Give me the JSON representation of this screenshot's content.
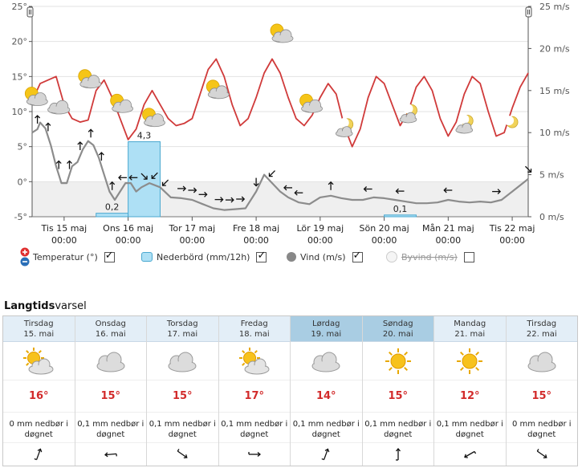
{
  "chart_data": {
    "type": "line",
    "y_left": {
      "ticks": [
        "25°",
        "20°",
        "15°",
        "10°",
        "5°",
        "0°",
        "-5°"
      ],
      "range": [
        -5,
        25
      ]
    },
    "y_right": {
      "ticks": [
        "25 m/s",
        "20 m/s",
        "15 m/s",
        "10 m/s",
        "5 m/s",
        "0 m/s"
      ],
      "range": [
        0,
        25
      ]
    },
    "x_labels": [
      {
        "day": "Tis 15 maj",
        "time": "00:00"
      },
      {
        "day": "Ons 16 maj",
        "time": "00:00"
      },
      {
        "day": "Tor 17 maj",
        "time": "00:00"
      },
      {
        "day": "Fre 18 maj",
        "time": "00:00"
      },
      {
        "day": "Lör 19 maj",
        "time": "00:00"
      },
      {
        "day": "Sön 20 maj",
        "time": "00:00"
      },
      {
        "day": "Mån 21 maj",
        "time": "00:00"
      },
      {
        "day": "Tis 22 maj",
        "time": "00:00"
      }
    ],
    "series": [
      {
        "name": "Temperatur (°)",
        "color": "#d03a3a",
        "points": [
          [
            0,
            11.5
          ],
          [
            3,
            14
          ],
          [
            6,
            14.5
          ],
          [
            9,
            15
          ],
          [
            12,
            11
          ],
          [
            15,
            9
          ],
          [
            18,
            8.5
          ],
          [
            21,
            8.8
          ],
          [
            24,
            13
          ],
          [
            27,
            14.5
          ],
          [
            30,
            12
          ],
          [
            33,
            9
          ],
          [
            36,
            6
          ],
          [
            39,
            7.5
          ],
          [
            42,
            11
          ],
          [
            45,
            13
          ],
          [
            48,
            11
          ],
          [
            51,
            9
          ],
          [
            54,
            8
          ],
          [
            57,
            8.3
          ],
          [
            60,
            9
          ],
          [
            63,
            12.5
          ],
          [
            66,
            16
          ],
          [
            69,
            17.5
          ],
          [
            72,
            15
          ],
          [
            75,
            11
          ],
          [
            78,
            8
          ],
          [
            81,
            9
          ],
          [
            84,
            12
          ],
          [
            87,
            15.5
          ],
          [
            90,
            17.5
          ],
          [
            93,
            15.5
          ],
          [
            96,
            12
          ],
          [
            99,
            9
          ],
          [
            102,
            8
          ],
          [
            105,
            9.5
          ],
          [
            108,
            12
          ],
          [
            111,
            14
          ],
          [
            114,
            12.5
          ],
          [
            117,
            8
          ],
          [
            120,
            5
          ],
          [
            123,
            7.5
          ],
          [
            126,
            12
          ],
          [
            129,
            15
          ],
          [
            132,
            14
          ],
          [
            135,
            11
          ],
          [
            138,
            8
          ],
          [
            141,
            10
          ],
          [
            144,
            13.5
          ],
          [
            147,
            15
          ],
          [
            150,
            13
          ],
          [
            153,
            9
          ],
          [
            156,
            6.5
          ],
          [
            159,
            8.5
          ],
          [
            162,
            12.5
          ],
          [
            165,
            15
          ],
          [
            168,
            14
          ],
          [
            171,
            10
          ],
          [
            174,
            6.5
          ],
          [
            177,
            7
          ],
          [
            180,
            10.5
          ],
          [
            183,
            13.5
          ],
          [
            186,
            15.5
          ]
        ]
      },
      {
        "name": "Vind (m/s)",
        "color": "#8c8c8c",
        "points": [
          [
            0,
            10
          ],
          [
            2,
            10.4
          ],
          [
            3,
            11.2
          ],
          [
            5,
            10.5
          ],
          [
            7,
            8.5
          ],
          [
            9,
            6
          ],
          [
            11,
            4
          ],
          [
            13,
            4
          ],
          [
            15,
            6
          ],
          [
            17,
            6.5
          ],
          [
            19,
            8
          ],
          [
            21,
            9
          ],
          [
            23,
            8.5
          ],
          [
            25,
            7
          ],
          [
            27,
            5
          ],
          [
            29,
            3
          ],
          [
            31,
            2
          ],
          [
            33,
            3
          ],
          [
            35,
            4
          ],
          [
            37,
            4
          ],
          [
            39,
            3
          ],
          [
            41,
            3.5
          ],
          [
            44,
            4
          ],
          [
            48,
            3.5
          ],
          [
            52,
            2.3
          ],
          [
            56,
            2.2
          ],
          [
            60,
            2
          ],
          [
            64,
            1.5
          ],
          [
            68,
            1
          ],
          [
            72,
            0.8
          ],
          [
            76,
            0.9
          ],
          [
            80,
            1
          ],
          [
            84,
            3
          ],
          [
            87,
            5
          ],
          [
            90,
            4
          ],
          [
            93,
            3
          ],
          [
            96,
            2.3
          ],
          [
            100,
            1.7
          ],
          [
            104,
            1.5
          ],
          [
            108,
            2.3
          ],
          [
            112,
            2.5
          ],
          [
            116,
            2.2
          ],
          [
            120,
            2
          ],
          [
            124,
            2
          ],
          [
            128,
            2.3
          ],
          [
            132,
            2.2
          ],
          [
            136,
            2
          ],
          [
            140,
            1.8
          ],
          [
            144,
            1.6
          ],
          [
            148,
            1.6
          ],
          [
            152,
            1.7
          ],
          [
            156,
            2
          ],
          [
            160,
            1.8
          ],
          [
            164,
            1.7
          ],
          [
            168,
            1.8
          ],
          [
            172,
            1.7
          ],
          [
            176,
            2
          ],
          [
            180,
            3
          ],
          [
            184,
            4
          ],
          [
            186,
            4.5
          ]
        ]
      }
    ],
    "bars": {
      "name": "Nederbörd (mm/12h)",
      "color": "#aee0f5",
      "items": [
        {
          "x0": 24,
          "x1": 36,
          "value": 0.2,
          "label": "0,2"
        },
        {
          "x0": 36,
          "x1": 48,
          "value": 4.3,
          "label": "4,3"
        },
        {
          "x0": 132,
          "x1": 144,
          "value": 0.1,
          "label": "0,1"
        }
      ]
    },
    "wind_arrows": [
      {
        "t": 2,
        "dir": "up"
      },
      {
        "t": 6,
        "dir": "up"
      },
      {
        "t": 10,
        "dir": "up"
      },
      {
        "t": 14,
        "dir": "up"
      },
      {
        "t": 18,
        "dir": "up"
      },
      {
        "t": 22,
        "dir": "up"
      },
      {
        "t": 26,
        "dir": "up"
      },
      {
        "t": 30,
        "dir": "up"
      },
      {
        "t": 34,
        "dir": "left"
      },
      {
        "t": 38,
        "dir": "left"
      },
      {
        "t": 42,
        "dir": "down-right"
      },
      {
        "t": 46,
        "dir": "down-left"
      },
      {
        "t": 50,
        "dir": "down-left"
      },
      {
        "t": 56,
        "dir": "right"
      },
      {
        "t": 60,
        "dir": "right"
      },
      {
        "t": 64,
        "dir": "right"
      },
      {
        "t": 70,
        "dir": "right"
      },
      {
        "t": 74,
        "dir": "right"
      },
      {
        "t": 78,
        "dir": "right"
      },
      {
        "t": 84,
        "dir": "down"
      },
      {
        "t": 90,
        "dir": "down-left"
      },
      {
        "t": 96,
        "dir": "left"
      },
      {
        "t": 100,
        "dir": "left"
      },
      {
        "t": 112,
        "dir": "up"
      },
      {
        "t": 126,
        "dir": "left"
      },
      {
        "t": 138,
        "dir": "left"
      },
      {
        "t": 156,
        "dir": "left"
      },
      {
        "t": 174,
        "dir": "right"
      },
      {
        "t": 186,
        "dir": "down-right"
      }
    ],
    "weather_icons": [
      {
        "t": 1,
        "temp": 12,
        "kind": "sun-cloud"
      },
      {
        "t": 10,
        "temp": 10.5,
        "kind": "cloud"
      },
      {
        "t": 21,
        "temp": 14.5,
        "kind": "sun-cloud"
      },
      {
        "t": 33,
        "temp": 11,
        "kind": "sun-cloud"
      },
      {
        "t": 45,
        "temp": 9,
        "kind": "sun-cloud"
      },
      {
        "t": 69,
        "temp": 13,
        "kind": "sun-cloud"
      },
      {
        "t": 93,
        "temp": 21,
        "kind": "sun-cloud"
      },
      {
        "t": 104,
        "temp": 11,
        "kind": "sun-cloud"
      },
      {
        "t": 117,
        "temp": 7.5,
        "kind": "moon-cloud"
      },
      {
        "t": 141,
        "temp": 9.5,
        "kind": "moon-cloud"
      },
      {
        "t": 162,
        "temp": 8,
        "kind": "moon-cloud"
      },
      {
        "t": 180,
        "temp": 8.5,
        "kind": "moon"
      }
    ],
    "colors": {
      "plot_bg_below_zero": "#efefef",
      "temperature": "#d03a3a",
      "wind": "#8c8c8c",
      "precip_fill": "#aee0f5",
      "precip_stroke": "#4aa8d0"
    }
  },
  "legend": {
    "temperature": "Temperatur (°)",
    "precip": "Nederbörd (mm/12h)",
    "wind": "Vind (m/s)",
    "gust": "Byvind (m/s)"
  },
  "longterm": {
    "title_bold": "Langtids",
    "title_rest": "varsel",
    "days": [
      {
        "name": "Tirsdag",
        "date": "15. mai",
        "icon": "sun-cloud",
        "temp": "16°",
        "precip_l1": "0 mm nedbør i",
        "precip_l2": "døgnet",
        "wind_dir": "up-right"
      },
      {
        "name": "Onsdag",
        "date": "16. mai",
        "icon": "cloud",
        "temp": "15°",
        "precip_l1": "0,1 mm nedbør i",
        "precip_l2": "døgnet",
        "wind_dir": "left"
      },
      {
        "name": "Torsdag",
        "date": "17. mai",
        "icon": "cloud",
        "temp": "15°",
        "precip_l1": "0,1 mm nedbør i",
        "precip_l2": "døgnet",
        "wind_dir": "down-right"
      },
      {
        "name": "Fredag",
        "date": "18. mai",
        "icon": "sun-cloud",
        "temp": "17°",
        "precip_l1": "0,1 mm nedbør i",
        "precip_l2": "døgnet",
        "wind_dir": "right"
      },
      {
        "name": "Lørdag",
        "date": "19. mai",
        "icon": "cloud",
        "temp": "14°",
        "precip_l1": "0,1 mm nedbør i",
        "precip_l2": "døgnet",
        "wind_dir": "up-right"
      },
      {
        "name": "Søndag",
        "date": "20. mai",
        "icon": "sun",
        "temp": "15°",
        "precip_l1": "0,1 mm nedbør i",
        "precip_l2": "døgnet",
        "wind_dir": "up"
      },
      {
        "name": "Mandag",
        "date": "21. mai",
        "icon": "sun",
        "temp": "12°",
        "precip_l1": "0,1 mm nedbør i",
        "precip_l2": "døgnet",
        "wind_dir": "down-left"
      },
      {
        "name": "Tirsdag",
        "date": "22. mai",
        "icon": "cloud",
        "temp": "15°",
        "precip_l1": "0 mm nedbør i",
        "precip_l2": "døgnet",
        "wind_dir": "down-right"
      }
    ]
  }
}
